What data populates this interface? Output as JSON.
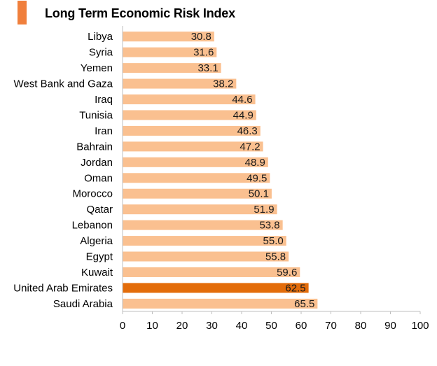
{
  "chart_data": {
    "type": "bar",
    "orientation": "horizontal",
    "title": "Long Term Economic Risk Index",
    "categories": [
      "Libya",
      "Syria",
      "Yemen",
      "West Bank and Gaza",
      "Iraq",
      "Tunisia",
      "Iran",
      "Bahrain",
      "Jordan",
      "Oman",
      "Morocco",
      "Qatar",
      "Lebanon",
      "Algeria",
      "Egypt",
      "Kuwait",
      "United Arab Emirates",
      "Saudi Arabia"
    ],
    "values": [
      30.8,
      31.6,
      33.1,
      38.2,
      44.6,
      44.9,
      46.3,
      47.2,
      48.9,
      49.5,
      50.1,
      51.9,
      53.8,
      55.0,
      55.8,
      59.6,
      62.5,
      65.5
    ],
    "value_labels": [
      "30.8",
      "31.6",
      "33.1",
      "38.2",
      "44.6",
      "44.9",
      "46.3",
      "47.2",
      "48.9",
      "49.5",
      "50.1",
      "51.9",
      "53.8",
      "55.0",
      "55.8",
      "59.6",
      "62.5",
      "65.5"
    ],
    "highlighted_category": "United Arab Emirates",
    "xlim": [
      0,
      100
    ],
    "x_ticks": [
      "0",
      "10",
      "20",
      "30",
      "40",
      "50",
      "60",
      "70",
      "80",
      "90",
      "100"
    ],
    "xlabel": "",
    "ylabel": "",
    "grid": false,
    "legend": "none",
    "colors": {
      "bar": "#fac090",
      "highlight": "#e36c0a",
      "accent": "#f07f3c",
      "axis": "#bfbfbf"
    }
  }
}
